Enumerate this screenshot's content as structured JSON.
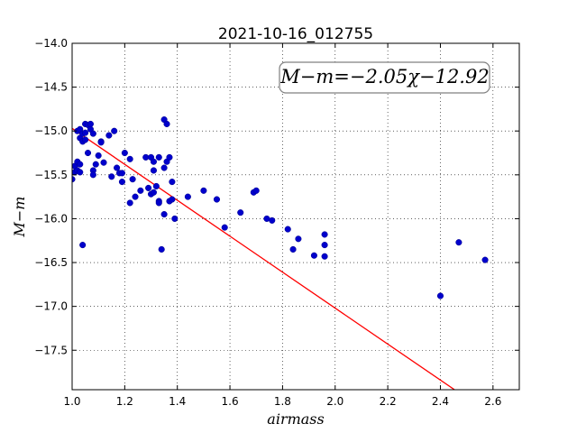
{
  "chart_data": {
    "type": "scatter",
    "title": "2021-10-16_012755",
    "xlabel": "airmass",
    "ylabel": "M−m",
    "xlim": [
      1.0,
      2.7
    ],
    "ylim": [
      -17.95,
      -14.0
    ],
    "y_inverted": true,
    "grid": true,
    "grid_style": "dotted",
    "x_ticks": [
      1.0,
      1.2,
      1.4,
      1.6,
      1.8,
      2.0,
      2.2,
      2.4,
      2.6
    ],
    "x_tick_labels": [
      "1.0",
      "1.2",
      "1.4",
      "1.6",
      "1.8",
      "2.0",
      "2.2",
      "2.4",
      "2.6"
    ],
    "y_ticks": [
      -14.0,
      -14.5,
      -15.0,
      -15.5,
      -16.0,
      -16.5,
      -17.0,
      -17.5
    ],
    "y_tick_labels": [
      "−14.0",
      "−14.5",
      "−15.0",
      "−15.5",
      "−16.0",
      "−16.5",
      "−17.0",
      "−17.5"
    ],
    "annotation": "M−m=−2.05χ−12.92",
    "fit": {
      "slope": -2.05,
      "intercept": -12.92,
      "x_range": [
        1.0,
        2.7
      ],
      "color": "#ff0000"
    },
    "points_color": "#0000cc",
    "points": [
      [
        1.0,
        -15.55
      ],
      [
        1.01,
        -15.4
      ],
      [
        1.01,
        -15.47
      ],
      [
        1.02,
        -15.45
      ],
      [
        1.02,
        -15.35
      ],
      [
        1.02,
        -15.0
      ],
      [
        1.03,
        -14.98
      ],
      [
        1.03,
        -15.08
      ],
      [
        1.03,
        -15.38
      ],
      [
        1.03,
        -15.47
      ],
      [
        1.04,
        -15.03
      ],
      [
        1.04,
        -15.12
      ],
      [
        1.05,
        -14.92
      ],
      [
        1.05,
        -15.02
      ],
      [
        1.05,
        -15.1
      ],
      [
        1.06,
        -15.25
      ],
      [
        1.06,
        -14.93
      ],
      [
        1.07,
        -14.98
      ],
      [
        1.07,
        -14.92
      ],
      [
        1.08,
        -15.03
      ],
      [
        1.08,
        -15.45
      ],
      [
        1.08,
        -15.5
      ],
      [
        1.09,
        -15.38
      ],
      [
        1.1,
        -15.28
      ],
      [
        1.11,
        -15.12
      ],
      [
        1.11,
        -15.13
      ],
      [
        1.12,
        -15.36
      ],
      [
        1.14,
        -15.05
      ],
      [
        1.15,
        -15.52
      ],
      [
        1.16,
        -15.0
      ],
      [
        1.17,
        -15.42
      ],
      [
        1.18,
        -15.48
      ],
      [
        1.19,
        -15.48
      ],
      [
        1.19,
        -15.58
      ],
      [
        1.2,
        -15.25
      ],
      [
        1.22,
        -15.32
      ],
      [
        1.22,
        -15.82
      ],
      [
        1.23,
        -15.55
      ],
      [
        1.24,
        -15.75
      ],
      [
        1.26,
        -15.68
      ],
      [
        1.28,
        -15.3
      ],
      [
        1.29,
        -15.65
      ],
      [
        1.3,
        -15.3
      ],
      [
        1.3,
        -15.72
      ],
      [
        1.31,
        -15.45
      ],
      [
        1.31,
        -15.7
      ],
      [
        1.31,
        -15.35
      ],
      [
        1.32,
        -15.63
      ],
      [
        1.33,
        -15.3
      ],
      [
        1.33,
        -15.8
      ],
      [
        1.33,
        -15.82
      ],
      [
        1.34,
        -16.35
      ],
      [
        1.35,
        -15.42
      ],
      [
        1.35,
        -15.95
      ],
      [
        1.35,
        -14.87
      ],
      [
        1.36,
        -14.92
      ],
      [
        1.36,
        -15.35
      ],
      [
        1.37,
        -15.3
      ],
      [
        1.37,
        -15.8
      ],
      [
        1.38,
        -15.78
      ],
      [
        1.38,
        -15.58
      ],
      [
        1.39,
        -16.0
      ],
      [
        1.44,
        -15.75
      ],
      [
        1.5,
        -15.68
      ],
      [
        1.55,
        -15.78
      ],
      [
        1.58,
        -16.1
      ],
      [
        1.64,
        -15.93
      ],
      [
        1.69,
        -15.7
      ],
      [
        1.7,
        -15.68
      ],
      [
        1.74,
        -16.0
      ],
      [
        1.76,
        -16.02
      ],
      [
        1.82,
        -16.12
      ],
      [
        1.84,
        -16.35
      ],
      [
        1.86,
        -16.23
      ],
      [
        1.92,
        -16.42
      ],
      [
        1.96,
        -16.18
      ],
      [
        1.96,
        -16.3
      ],
      [
        1.96,
        -16.43
      ],
      [
        1.04,
        -16.3
      ],
      [
        2.4,
        -16.88
      ],
      [
        2.47,
        -16.27
      ],
      [
        2.57,
        -16.47
      ]
    ]
  }
}
